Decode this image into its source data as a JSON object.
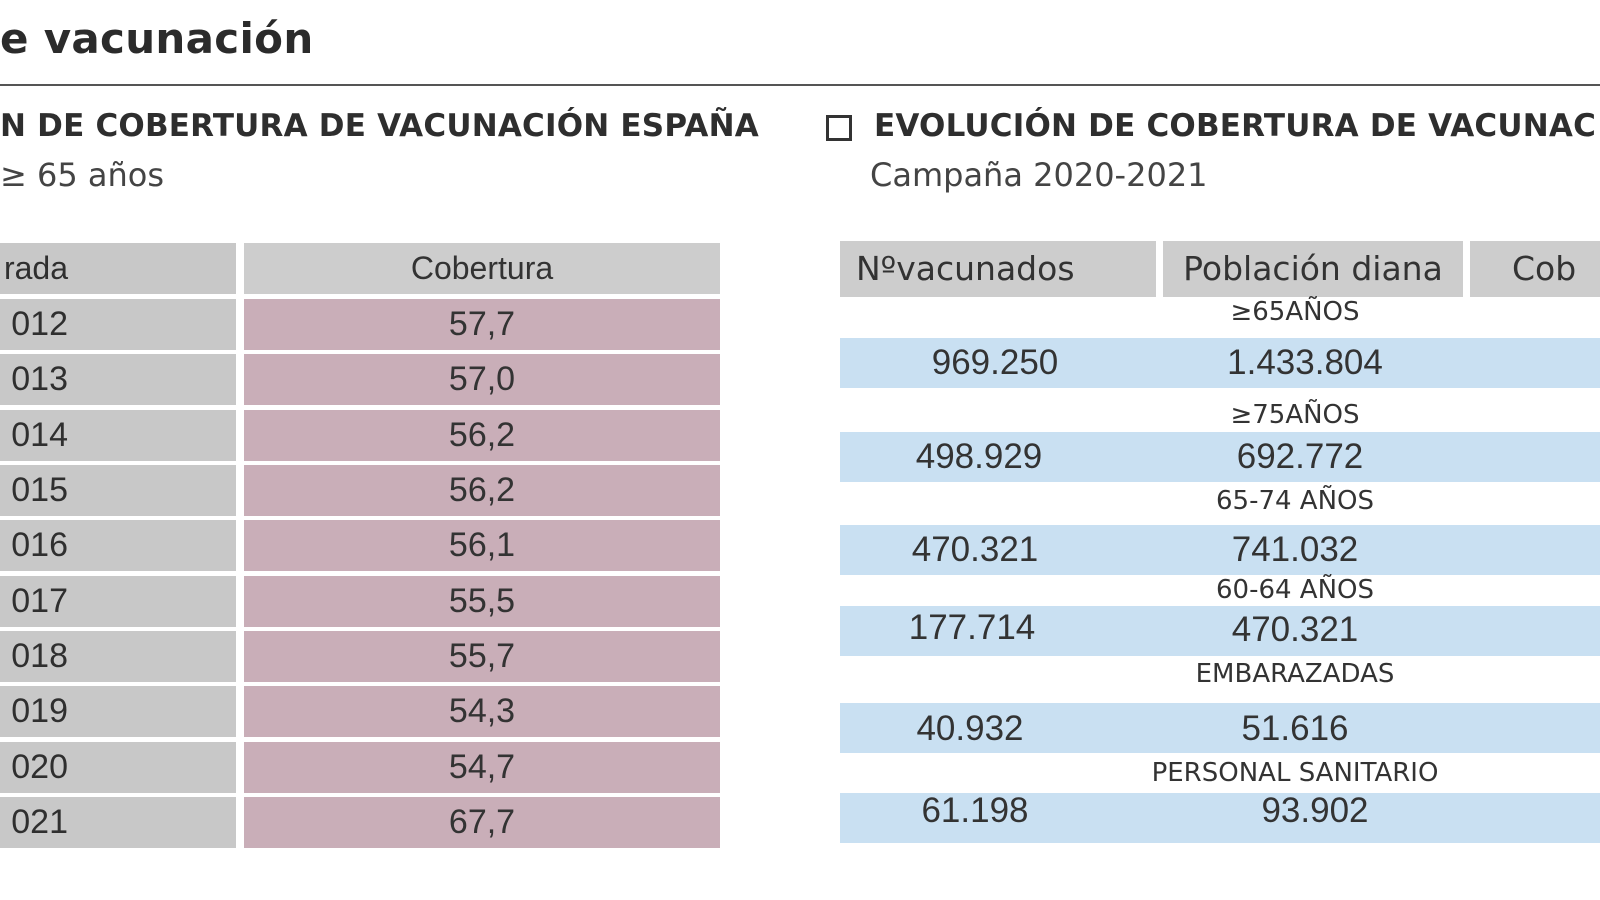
{
  "page_title": "e vacunación",
  "left_section": {
    "heading": "N DE COBERTURA DE VACUNACIÓN ESPAÑA",
    "subheading": "≥ 65 años",
    "header": {
      "col1": "rada",
      "col2": "Cobertura"
    },
    "rows": [
      {
        "year": "012",
        "coverage": "57,7"
      },
      {
        "year": "013",
        "coverage": "57,0"
      },
      {
        "year": "014",
        "coverage": "56,2"
      },
      {
        "year": "015",
        "coverage": "56,2"
      },
      {
        "year": "016",
        "coverage": "56,1"
      },
      {
        "year": "017",
        "coverage": "55,5"
      },
      {
        "year": "018",
        "coverage": "55,7"
      },
      {
        "year": "019",
        "coverage": "54,3"
      },
      {
        "year": "020",
        "coverage": "54,7"
      },
      {
        "year": "021",
        "coverage": "67,7"
      }
    ]
  },
  "right_section": {
    "heading": "EVOLUCIÓN DE COBERTURA DE VACUNAC",
    "subheading": "Campaña 2020-2021",
    "header": {
      "col1": "Nºvacunados",
      "col2": "Población diana",
      "col3": "Cob"
    },
    "groups": [
      {
        "label": "≥65AÑOS",
        "vaccinated": "969.250",
        "target": "1.433.804"
      },
      {
        "label": "≥75AÑOS",
        "vaccinated": "498.929",
        "target": "692.772"
      },
      {
        "label": "65-74 AÑOS",
        "vaccinated": "470.321",
        "target": "741.032"
      },
      {
        "label": "60-64 AÑOS",
        "vaccinated": "177.714",
        "target": "470.321"
      },
      {
        "label": "EMBARAZADAS",
        "vaccinated": "40.932",
        "target": "51.616"
      },
      {
        "label": "PERSONAL SANITARIO",
        "vaccinated": "61.198",
        "target": "93.902"
      }
    ]
  },
  "colors": {
    "year_cell": "#c8c8c8",
    "coverage_cell": "#c9aeb8",
    "blue_band": "#c9e0f2",
    "header_gray": "#cdcdcd"
  }
}
